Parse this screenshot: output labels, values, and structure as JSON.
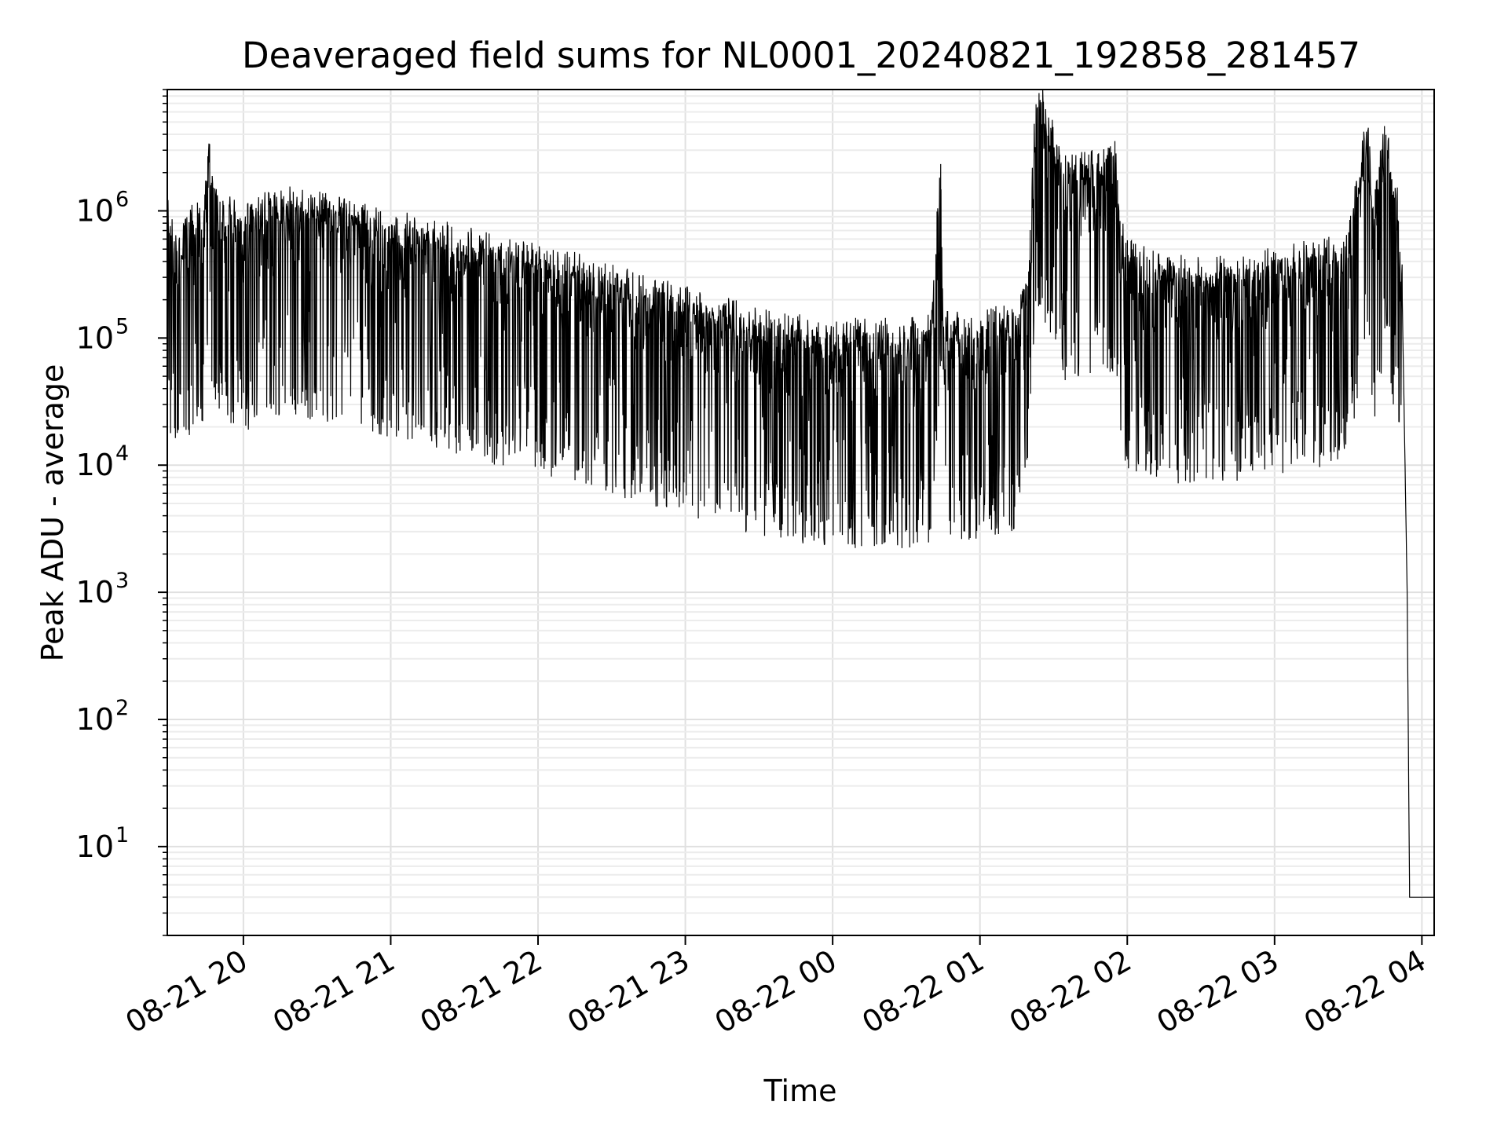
{
  "chart_data": {
    "type": "line",
    "title": "Deaveraged field sums for NL0001_20240821_192858_281457",
    "xlabel": "Time",
    "ylabel": "Peak ADU - average",
    "yscale": "log",
    "grid": true,
    "xlim": [
      "2024-08-21 19:29",
      "2024-08-22 04:05"
    ],
    "ylim": [
      2,
      9000000
    ],
    "x_ticks": [
      "08-21 20",
      "08-21 21",
      "08-21 22",
      "08-21 23",
      "08-22 00",
      "08-22 01",
      "08-22 02",
      "08-22 03",
      "08-22 04"
    ],
    "y_ticks": [
      {
        "base": "10",
        "exp": "1"
      },
      {
        "base": "10",
        "exp": "2"
      },
      {
        "base": "10",
        "exp": "3"
      },
      {
        "base": "10",
        "exp": "4"
      },
      {
        "base": "10",
        "exp": "5"
      },
      {
        "base": "10",
        "exp": "6"
      }
    ],
    "series": [
      {
        "color": "#000000",
        "points": [
          [
            "2024-08-21 19:29",
            550000
          ],
          [
            "2024-08-21 19:33",
            350000
          ],
          [
            "2024-08-21 19:36",
            420000
          ],
          [
            "2024-08-21 19:40",
            500000
          ],
          [
            "2024-08-21 19:44",
            580000
          ],
          [
            "2024-08-21 19:46",
            2400000
          ],
          [
            "2024-08-21 19:47",
            900000
          ],
          [
            "2024-08-21 19:50",
            700000
          ],
          [
            "2024-08-21 20:00",
            450000
          ],
          [
            "2024-08-21 20:10",
            650000
          ],
          [
            "2024-08-21 20:20",
            650000
          ],
          [
            "2024-08-21 20:30",
            600000
          ],
          [
            "2024-08-21 20:45",
            500000
          ],
          [
            "2024-08-21 21:00",
            450000
          ],
          [
            "2024-08-21 21:15",
            380000
          ],
          [
            "2024-08-21 21:30",
            320000
          ],
          [
            "2024-08-21 21:45",
            260000
          ],
          [
            "2024-08-21 22:00",
            230000
          ],
          [
            "2024-08-21 22:15",
            200000
          ],
          [
            "2024-08-21 22:30",
            160000
          ],
          [
            "2024-08-21 22:45",
            130000
          ],
          [
            "2024-08-21 23:00",
            110000
          ],
          [
            "2024-08-21 23:15",
            90000
          ],
          [
            "2024-08-21 23:30",
            75000
          ],
          [
            "2024-08-21 23:45",
            65000
          ],
          [
            "2024-08-22 00:00",
            60000
          ],
          [
            "2024-08-22 00:15",
            60000
          ],
          [
            "2024-08-22 00:30",
            60000
          ],
          [
            "2024-08-22 00:40",
            65000
          ],
          [
            "2024-08-22 00:44",
            1300000
          ],
          [
            "2024-08-22 00:45",
            70000
          ],
          [
            "2024-08-22 01:00",
            70000
          ],
          [
            "2024-08-22 01:15",
            80000
          ],
          [
            "2024-08-22 01:20",
            200000
          ],
          [
            "2024-08-22 01:22",
            2000000
          ],
          [
            "2024-08-22 01:24",
            4800000
          ],
          [
            "2024-08-22 01:35",
            1200000
          ],
          [
            "2024-08-22 01:50",
            1300000
          ],
          [
            "2024-08-22 01:55",
            1500000
          ],
          [
            "2024-08-22 01:58",
            350000
          ],
          [
            "2024-08-22 02:00",
            250000
          ],
          [
            "2024-08-22 02:15",
            200000
          ],
          [
            "2024-08-22 02:30",
            180000
          ],
          [
            "2024-08-22 02:45",
            200000
          ],
          [
            "2024-08-22 03:00",
            220000
          ],
          [
            "2024-08-22 03:15",
            250000
          ],
          [
            "2024-08-22 03:30",
            300000
          ],
          [
            "2024-08-22 03:38",
            3000000
          ],
          [
            "2024-08-22 03:40",
            500000
          ],
          [
            "2024-08-22 03:46",
            3000000
          ],
          [
            "2024-08-22 03:48",
            800000
          ],
          [
            "2024-08-22 03:50",
            700000
          ],
          [
            "2024-08-22 03:52",
            200000
          ],
          [
            "2024-08-22 03:54",
            1000
          ],
          [
            "2024-08-22 03:55",
            4
          ],
          [
            "2024-08-22 04:05",
            4
          ]
        ]
      }
    ]
  }
}
